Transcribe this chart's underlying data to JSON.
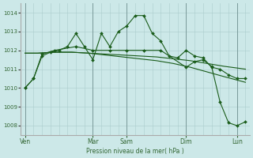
{
  "background_color": "#cce8e8",
  "grid_color": "#aacccc",
  "line_color": "#1a5c1a",
  "ylabel": "Pression niveau de la mer( hPa )",
  "ylim": [
    1007.5,
    1014.5
  ],
  "yticks": [
    1008,
    1009,
    1010,
    1011,
    1012,
    1013,
    1014
  ],
  "x_day_labels": [
    "Ven",
    "Mar",
    "Sam",
    "Dim",
    "Lun"
  ],
  "x_day_positions": [
    0.5,
    8.5,
    12.5,
    19.5,
    25.5
  ],
  "xlim": [
    0,
    27
  ],
  "vlines": [
    0.5,
    8.5,
    12.5,
    19.5,
    25.5
  ],
  "s1_x": [
    0.5,
    1.5,
    2.5,
    3.5,
    4.5,
    5.5,
    6.5,
    7.5,
    8.5,
    9.5,
    10.5,
    11.5,
    12.5,
    13.5,
    14.5,
    15.5,
    16.5,
    17.5,
    18.5,
    19.5,
    20.5,
    21.5,
    22.5,
    23.5,
    24.5,
    25.5,
    26.5
  ],
  "s1_y": [
    1010.0,
    1010.5,
    1011.7,
    1011.9,
    1012.0,
    1012.2,
    1012.9,
    1012.2,
    1011.5,
    1012.9,
    1012.2,
    1013.0,
    1013.3,
    1013.85,
    1013.85,
    1012.9,
    1012.5,
    1011.7,
    1011.6,
    1012.0,
    1011.7,
    1011.6,
    1011.1,
    1011.0,
    1010.7,
    1010.5,
    1010.5
  ],
  "s1_markers": true,
  "s2_x": [
    0.5,
    2.0,
    4.0,
    6.0,
    8.0,
    10.0,
    12.0,
    14.0,
    16.0,
    18.0,
    20.0,
    22.0,
    24.0,
    26.5
  ],
  "s2_y": [
    1011.85,
    1011.85,
    1011.9,
    1011.9,
    1011.85,
    1011.8,
    1011.75,
    1011.7,
    1011.65,
    1011.55,
    1011.45,
    1011.3,
    1011.15,
    1011.0
  ],
  "s2_markers": false,
  "s3_x": [
    0.5,
    2.0,
    4.0,
    6.0,
    8.0,
    10.0,
    12.0,
    14.0,
    16.0,
    18.0,
    20.0,
    22.0,
    24.0,
    26.5
  ],
  "s3_y": [
    1011.85,
    1011.85,
    1011.9,
    1011.9,
    1011.85,
    1011.75,
    1011.65,
    1011.55,
    1011.45,
    1011.3,
    1011.1,
    1010.85,
    1010.6,
    1010.3
  ],
  "s3_markers": false,
  "s4_x": [
    0.5,
    1.5,
    2.5,
    4.0,
    6.5,
    8.5,
    10.5,
    12.5,
    14.5,
    16.5,
    19.5,
    20.5,
    21.5,
    22.5,
    23.5,
    24.5,
    25.5,
    26.5
  ],
  "s4_y": [
    1010.0,
    1010.5,
    1011.8,
    1012.0,
    1012.2,
    1012.0,
    1012.0,
    1012.0,
    1012.0,
    1012.0,
    1011.1,
    1011.4,
    1011.5,
    1011.15,
    1009.25,
    1008.15,
    1008.0,
    1008.2
  ],
  "s4_markers": true
}
